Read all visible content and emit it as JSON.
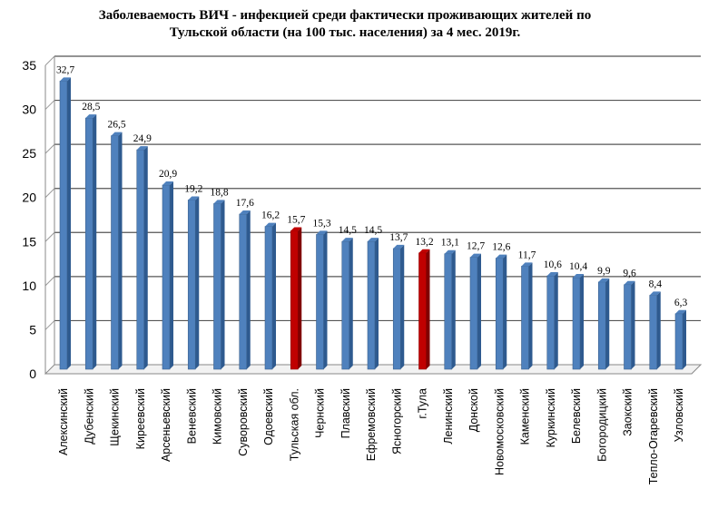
{
  "chart_data": {
    "type": "bar",
    "title_line1": "Заболеваемость ВИЧ - инфекцией среди фактически проживающих жителей по",
    "title_line2": "Тульской области (на 100 тыс. населения) за 4 мес. 2019г.",
    "categories": [
      "Алексинский",
      "Дубенский",
      "Щекинский",
      "Киреевский",
      "Арсеньевский",
      "Веневский",
      "Кимовский",
      "Суворовский",
      "Одоевский",
      "Тульская обл.",
      "Чернский",
      "Плавский",
      "Ефремовский",
      "Ясногорский",
      "г.Тула",
      "Ленинский",
      "Донской",
      "Новомосковский",
      "Каменский",
      "Куркинский",
      "Белевский",
      "Богородицкий",
      "Заокский",
      "Тепло-Огаревский",
      "Узловский"
    ],
    "values": [
      32.7,
      28.5,
      26.5,
      24.9,
      20.9,
      19.2,
      18.8,
      17.6,
      16.2,
      15.7,
      15.3,
      14.5,
      14.5,
      13.7,
      13.2,
      13.1,
      12.7,
      12.6,
      11.7,
      10.6,
      10.4,
      9.9,
      9.6,
      8.4,
      6.3
    ],
    "value_labels": [
      "32,7",
      "28,5",
      "26,5",
      "24,9",
      "20,9",
      "19,2",
      "18,8",
      "17,6",
      "16,2",
      "15,7",
      "15,3",
      "14,5",
      "14,5",
      "13,7",
      "13,2",
      "13,1",
      "12,7",
      "12,6",
      "11,7",
      "10,6",
      "10,4",
      "9,9",
      "9,6",
      "8,4",
      "6,3"
    ],
    "highlighted": [
      "Тульская обл.",
      "г.Тула"
    ],
    "colors": {
      "bar": "#4f81bd",
      "bar_dark": "#2e5a8f",
      "highlight": "#c00000",
      "highlight_dark": "#800000",
      "grid": "#555555"
    },
    "ylim": [
      0,
      35
    ],
    "yticks": [
      0,
      5,
      10,
      15,
      20,
      25,
      30,
      35
    ],
    "grid": true,
    "legend": "none"
  }
}
